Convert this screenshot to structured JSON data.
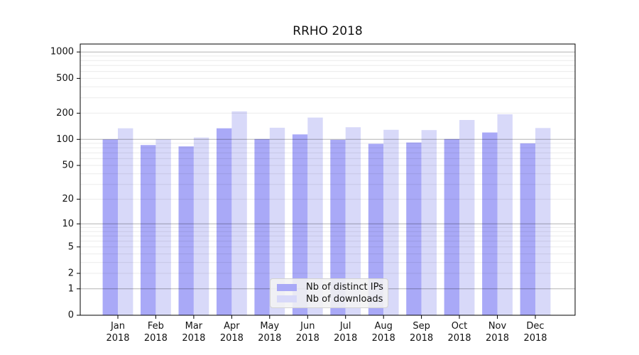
{
  "chart_data": {
    "type": "bar",
    "title": "RRHO 2018",
    "categories": [
      "Jan",
      "Feb",
      "Mar",
      "Apr",
      "May",
      "Jun",
      "Jul",
      "Aug",
      "Sep",
      "Oct",
      "Nov",
      "Dec"
    ],
    "x_tick_second_line": "2018",
    "series": [
      {
        "name": "Nb of distinct IPs",
        "color": "#a9a9f7",
        "values": [
          100,
          86,
          83,
          134,
          101,
          114,
          99,
          89,
          92,
          101,
          120,
          90
        ]
      },
      {
        "name": "Nb of downloads",
        "color": "#d8d9f9",
        "values": [
          134,
          100,
          105,
          210,
          136,
          178,
          138,
          129,
          128,
          167,
          194,
          135
        ]
      }
    ],
    "xlabel": "",
    "ylabel": "",
    "yscale": "log1p",
    "ylim": [
      0,
      1230
    ],
    "y_tick_values": [
      0,
      1,
      2,
      5,
      10,
      20,
      50,
      100,
      200,
      500,
      1000
    ],
    "y_major_gridlines": [
      1,
      10,
      100,
      1000
    ],
    "grid": "on",
    "legend_position": "lower center"
  },
  "colors": {
    "series_dark": "#a9a9f7",
    "series_light": "#d8d9f9",
    "major_grid": "rgba(0,0,0,0.30)",
    "minor_grid": "rgba(0,0,0,0.08)",
    "axis": "#000000",
    "legend_bg": "rgba(242,242,242,0.88)"
  }
}
